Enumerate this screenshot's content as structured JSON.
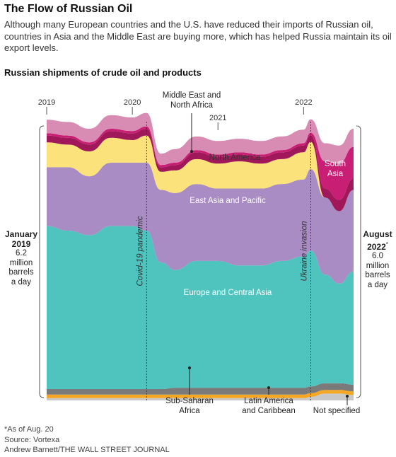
{
  "headline": "The Flow of Russian Oil",
  "dek": "Although many European countries and the U.S. have reduced their imports of Russian oil, countries in Asia and the Middle East are buying more, which has helped Russia maintain its oil export levels.",
  "chart_title": "Russian shipments of crude oil and products",
  "left_label": {
    "line1": "January",
    "line2": "2019",
    "value": "6.2",
    "unit1": "million",
    "unit2": "barrels",
    "unit3": "a day"
  },
  "right_label": {
    "line1": "August",
    "line2": "2022",
    "sup": "*",
    "value": "6.0",
    "unit1": "million",
    "unit2": "barrels",
    "unit3": "a day"
  },
  "footnote": {
    "note": "*As of Aug. 20",
    "source": "Source: Vortexa",
    "credit": "Andrew Barnett/THE WALL STREET JOURNAL"
  },
  "colors": {
    "not_specified": "#c8c8c8",
    "latin_america": "#f5a623",
    "sub_saharan": "#7a7a7a",
    "europe": "#4fc3bd",
    "east_asia": "#a98cc4",
    "north_america": "#fbe27a",
    "middle_east": "#a0185a",
    "south_asia": "#c81e73",
    "top_pink": "#d98cb3"
  },
  "chart_data": {
    "type": "area",
    "stacked": true,
    "xlabel": "",
    "ylabel": "",
    "year_ticks": [
      "2019",
      "2020",
      "2021",
      "2022"
    ],
    "events": [
      {
        "label": "Covid-19 pandemic",
        "date": "2020-03"
      },
      {
        "label": "Ukraine invasion",
        "date": "2022-02"
      }
    ],
    "series_labels": {
      "middle_east": "Middle East and North Africa",
      "north_america": "North America",
      "east_asia": "East Asia and Pacific",
      "europe": "Europe and Central Asia",
      "south_asia": "South Asia",
      "sub_saharan": "Sub-Saharan Africa",
      "latin_america": "Latin America and Caribbean",
      "not_specified": "Not specified"
    },
    "x": [
      "2019-01",
      "2019-04",
      "2019-07",
      "2019-10",
      "2020-01",
      "2020-03",
      "2020-05",
      "2020-07",
      "2020-10",
      "2021-01",
      "2021-04",
      "2021-07",
      "2021-10",
      "2022-01",
      "2022-02",
      "2022-04",
      "2022-06",
      "2022-08"
    ],
    "series": [
      {
        "key": "not_specified",
        "values": [
          0.05,
          0.05,
          0.05,
          0.05,
          0.05,
          0.05,
          0.05,
          0.05,
          0.05,
          0.05,
          0.05,
          0.05,
          0.05,
          0.05,
          0.08,
          0.15,
          0.15,
          0.12
        ]
      },
      {
        "key": "latin_america",
        "values": [
          0.08,
          0.08,
          0.08,
          0.08,
          0.08,
          0.08,
          0.08,
          0.08,
          0.08,
          0.08,
          0.08,
          0.08,
          0.08,
          0.08,
          0.08,
          0.08,
          0.08,
          0.08
        ]
      },
      {
        "key": "sub_saharan",
        "values": [
          0.12,
          0.12,
          0.12,
          0.12,
          0.12,
          0.12,
          0.12,
          0.15,
          0.15,
          0.15,
          0.15,
          0.15,
          0.15,
          0.15,
          0.15,
          0.15,
          0.15,
          0.15
        ]
      },
      {
        "key": "europe",
        "values": [
          3.6,
          3.5,
          3.4,
          3.6,
          3.6,
          3.5,
          2.8,
          2.6,
          2.8,
          2.8,
          2.7,
          2.7,
          2.8,
          2.9,
          3.0,
          2.4,
          2.2,
          2.5
        ]
      },
      {
        "key": "east_asia",
        "values": [
          1.3,
          1.4,
          1.3,
          1.4,
          1.4,
          1.5,
          1.6,
          1.7,
          1.7,
          1.6,
          1.7,
          1.7,
          1.7,
          1.7,
          1.8,
          1.7,
          1.6,
          1.8
        ]
      },
      {
        "key": "north_america",
        "values": [
          0.55,
          0.5,
          0.55,
          0.55,
          0.5,
          0.6,
          0.4,
          0.5,
          0.55,
          0.55,
          0.6,
          0.55,
          0.55,
          0.6,
          0.6,
          0.0,
          0.0,
          0.0
        ]
      },
      {
        "key": "middle_east",
        "values": [
          0.15,
          0.15,
          0.15,
          0.15,
          0.15,
          0.15,
          0.1,
          0.12,
          0.15,
          0.15,
          0.15,
          0.15,
          0.15,
          0.15,
          0.15,
          0.2,
          0.25,
          0.25
        ]
      },
      {
        "key": "south_asia",
        "values": [
          0.05,
          0.05,
          0.05,
          0.05,
          0.05,
          0.05,
          0.05,
          0.05,
          0.05,
          0.05,
          0.05,
          0.05,
          0.05,
          0.05,
          0.05,
          0.6,
          0.8,
          0.7
        ]
      },
      {
        "key": "top_pink",
        "values": [
          0.3,
          0.3,
          0.3,
          0.3,
          0.3,
          0.3,
          0.25,
          0.3,
          0.3,
          0.3,
          0.3,
          0.3,
          0.3,
          0.3,
          0.3,
          0.4,
          0.4,
          0.4
        ]
      }
    ]
  }
}
